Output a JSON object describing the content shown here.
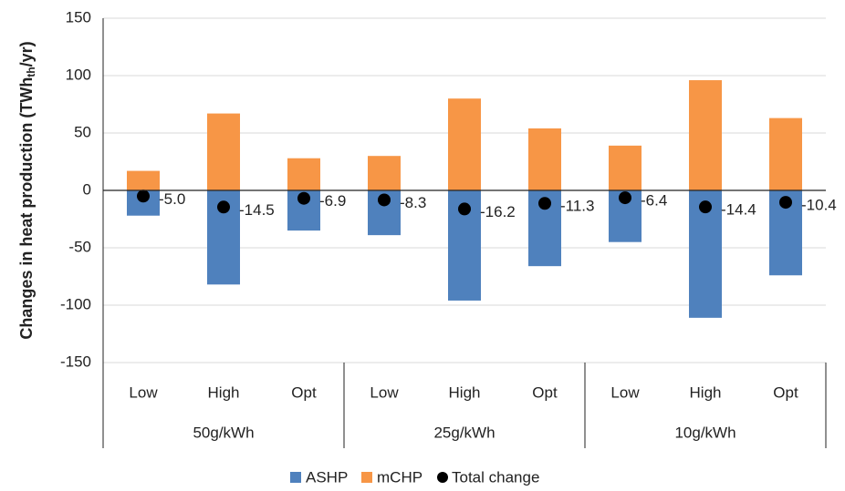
{
  "chart_data": {
    "type": "bar",
    "ylabel": {
      "text": "Changes in heat production (TWh",
      "subscript": "th",
      "suffix": "/yr)"
    },
    "categories": [
      "Low",
      "High",
      "Opt",
      "Low",
      "High",
      "Opt",
      "Low",
      "High",
      "Opt"
    ],
    "groups": [
      "50g/kWh",
      "25g/kWh",
      "10g/kWh"
    ],
    "series": [
      {
        "name": "ASHP",
        "color": "#4f81bd",
        "values": [
          -22,
          -82,
          -35,
          -39,
          -96,
          -66,
          -45,
          -111,
          -74
        ]
      },
      {
        "name": "mCHP",
        "color": "#f79646",
        "values": [
          17,
          67,
          28,
          30,
          80,
          54,
          39,
          96,
          63
        ]
      },
      {
        "name": "Total change",
        "type": "marker",
        "color": "#000000",
        "values": [
          -5,
          -14.5,
          -6.9,
          -8.3,
          -16.2,
          -11.3,
          -6.4,
          -14.4,
          -10.4
        ],
        "value_labels": [
          "-5.0",
          "-14.5",
          "-6.9",
          "-8.3",
          "-16.2",
          "-11.3",
          "-6.4",
          "-14.4",
          "-10.4"
        ]
      }
    ],
    "ylim": [
      -150,
      150
    ],
    "yticks": [
      -150,
      -100,
      -50,
      0,
      50,
      100,
      150
    ],
    "grid": true,
    "legend": "bottom"
  }
}
